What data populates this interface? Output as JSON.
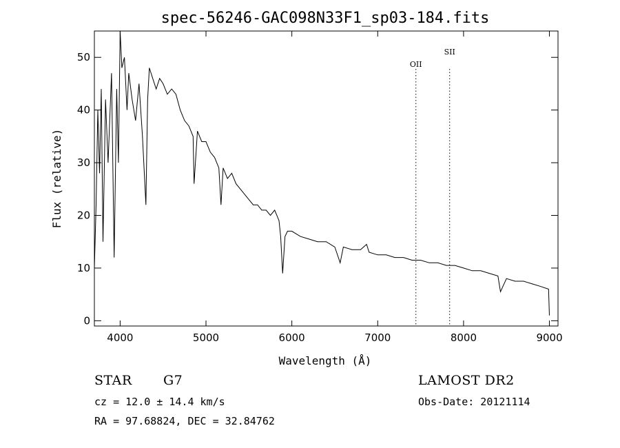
{
  "chart_data": {
    "type": "line",
    "title": "spec-56246-GAC098N33F1_sp03-184.fits",
    "xlabel": "Wavelength (Å)",
    "ylabel": "Flux (relative)",
    "xlim": [
      3700,
      9100
    ],
    "ylim": [
      -1,
      55
    ],
    "x_ticks": [
      4000,
      5000,
      6000,
      7000,
      8000,
      9000
    ],
    "y_ticks": [
      0,
      10,
      20,
      30,
      40,
      50
    ],
    "grid": false,
    "line_color": "#000000",
    "series": [
      {
        "x": [
          3700,
          3720,
          3740,
          3760,
          3780,
          3800,
          3830,
          3860,
          3900,
          3930,
          3960,
          3980,
          4000,
          4020,
          4050,
          4080,
          4100,
          4140,
          4180,
          4220,
          4260,
          4300,
          4320,
          4340,
          4380,
          4420,
          4460,
          4500,
          4550,
          4600,
          4650,
          4700,
          4750,
          4800,
          4850,
          4861,
          4900,
          4950,
          5000,
          5050,
          5100,
          5150,
          5175,
          5200,
          5250,
          5300,
          5350,
          5400,
          5450,
          5500,
          5550,
          5600,
          5650,
          5700,
          5750,
          5800,
          5850,
          5870,
          5893,
          5920,
          5950,
          6000,
          6100,
          6200,
          6300,
          6400,
          6500,
          6563,
          6600,
          6700,
          6800,
          6870,
          6900,
          7000,
          7100,
          7200,
          7300,
          7400,
          7500,
          7600,
          7700,
          7800,
          7900,
          8000,
          8100,
          8200,
          8300,
          8400,
          8430,
          8500,
          8600,
          8700,
          8800,
          8900,
          8990,
          9000
        ],
        "y": [
          10,
          22,
          40,
          28,
          44,
          15,
          42,
          30,
          47,
          12,
          44,
          30,
          55,
          48,
          50,
          40,
          47,
          42,
          38,
          45,
          35,
          22,
          42,
          48,
          46,
          44,
          46,
          45,
          43,
          44,
          43,
          40,
          38,
          37,
          35,
          26,
          36,
          34,
          34,
          32,
          31,
          29,
          22,
          29,
          27,
          28,
          26,
          25,
          24,
          23,
          22,
          22,
          21,
          21,
          20,
          21,
          19,
          16,
          9,
          16,
          17,
          17,
          16,
          15.5,
          15,
          15,
          14,
          11,
          14,
          13.5,
          13.5,
          14.5,
          13,
          12.5,
          12.5,
          12,
          12,
          11.5,
          11.5,
          11,
          11,
          10.5,
          10.5,
          10,
          9.5,
          9.5,
          9,
          8.5,
          5.5,
          8,
          7.5,
          7.5,
          7,
          6.5,
          6,
          1
        ]
      }
    ],
    "annotations": [
      {
        "x": 7445,
        "label": "OII"
      },
      {
        "x": 7838,
        "label": "SII"
      }
    ]
  },
  "footer": {
    "object_type": "STAR",
    "subclass": "G7",
    "cz": "cz = 12.0 ± 14.4 km/s",
    "coords": "RA =  97.68824, DEC =  32.84762",
    "survey": "LAMOST DR2",
    "obs_date": "Obs-Date: 20121114"
  }
}
